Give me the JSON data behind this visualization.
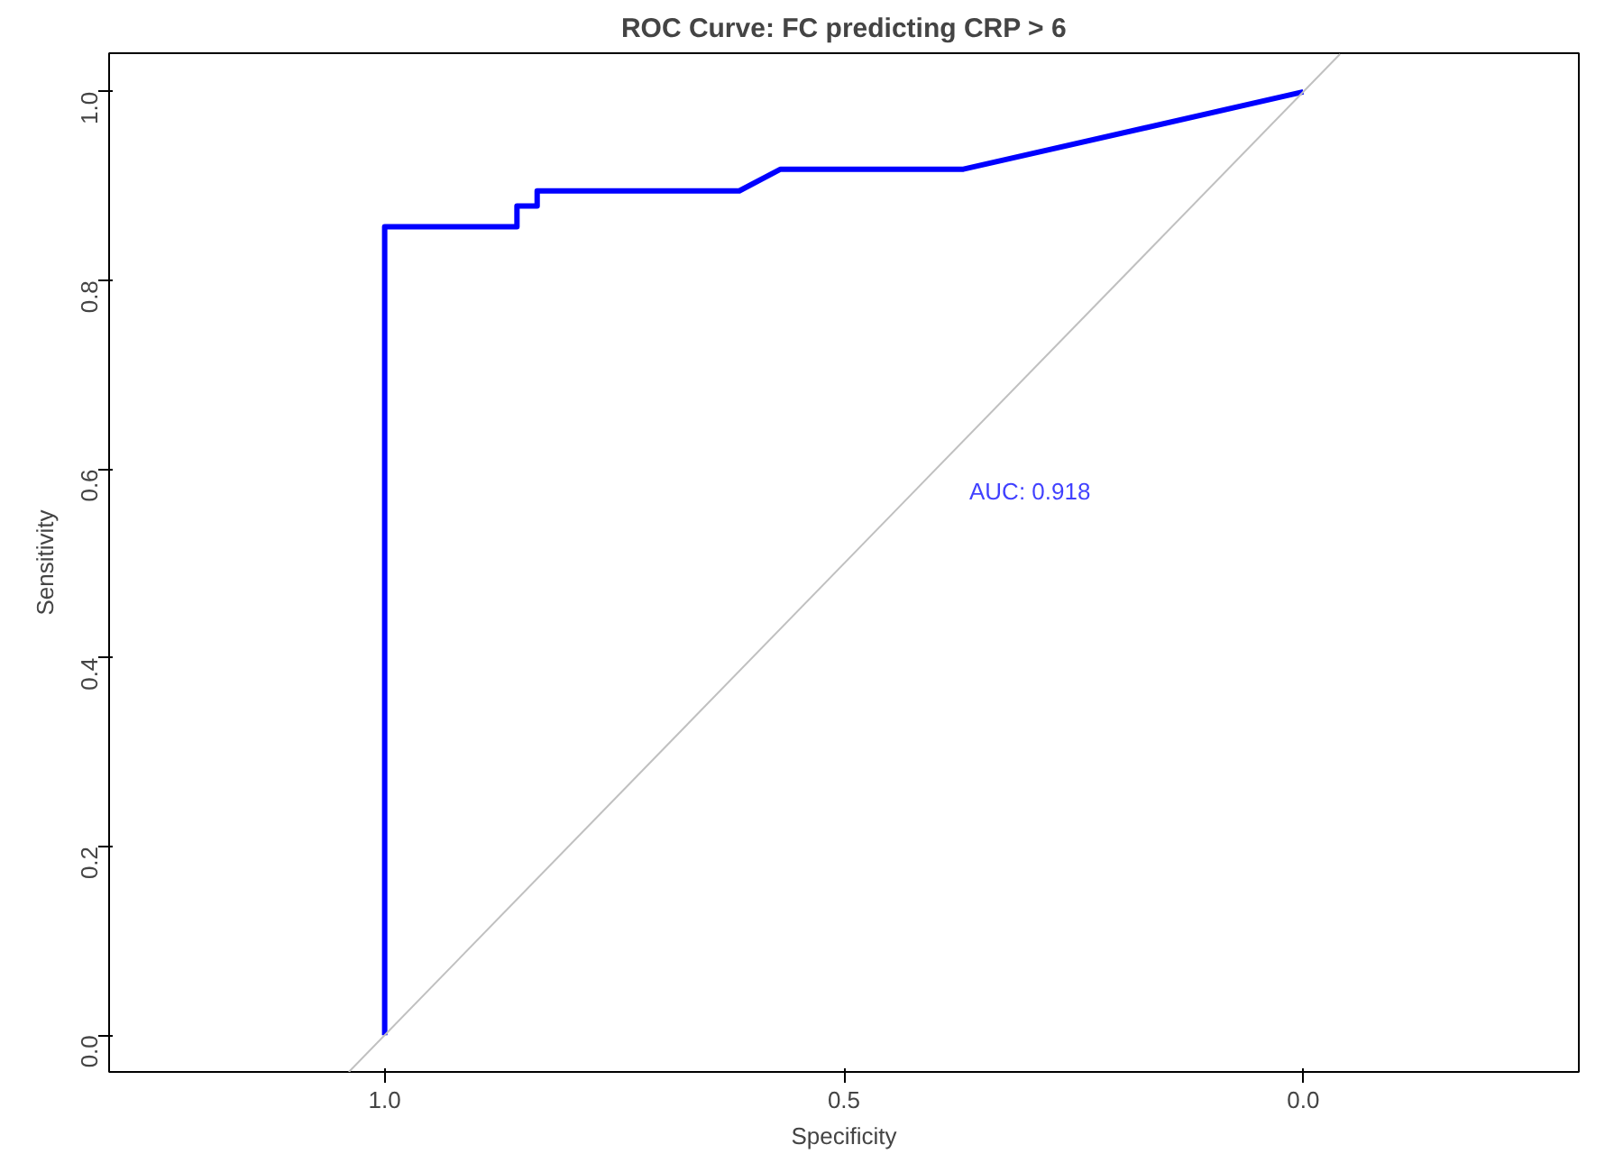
{
  "chart_data": {
    "type": "line",
    "title": "ROC Curve: FC predicting CRP > 6",
    "xlabel": "Specificity",
    "ylabel": "Sensitivity",
    "series": [
      {
        "color": "#0000ff",
        "x": [
          1.0,
          1.0,
          0.856,
          0.856,
          0.834,
          0.834,
          0.614,
          0.569,
          0.37,
          0.0
        ],
        "values": [
          0.0,
          0.857,
          0.857,
          0.879,
          0.879,
          0.895,
          0.895,
          0.918,
          0.918,
          1.0
        ]
      },
      {
        "color": "#c0c0c0",
        "x": [
          1.039,
          -0.04
        ],
        "values": [
          -0.039,
          1.04
        ]
      }
    ],
    "xlim": [
      1.3,
      -0.3
    ],
    "ylim": [
      -0.039,
      1.041
    ],
    "xticks": [
      {
        "value": 1.0,
        "label": "1.0"
      },
      0.5,
      {
        "value": 0.0,
        "label": "0.0"
      }
    ],
    "yticks": [
      {
        "value": 0.0,
        "label": "0.0"
      },
      0.2,
      0.4,
      0.6,
      0.8,
      {
        "value": 1.0,
        "label": "1.0"
      }
    ],
    "annotations": [
      "AUC: 0.918"
    ],
    "grid": false,
    "marker": "none",
    "line_style": "solid"
  }
}
